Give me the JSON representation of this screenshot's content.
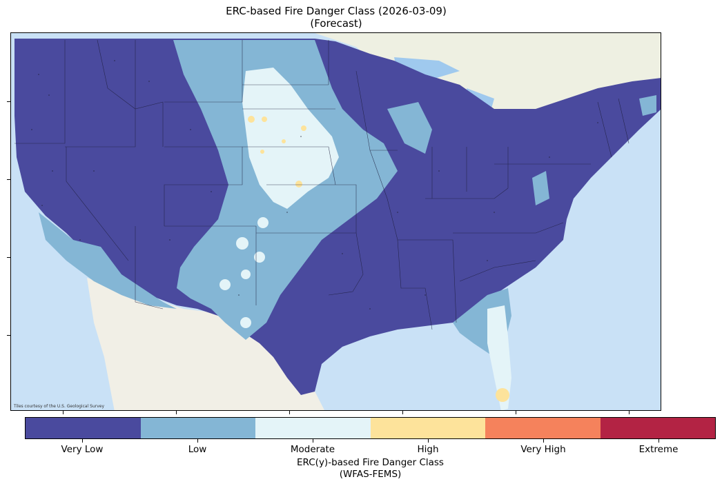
{
  "title": {
    "line1": "ERC-based Fire Danger Class (2026-03-09)",
    "line2": "(Forecast)"
  },
  "map": {
    "attribution": "Tiles courtesy of the U.S. Geological Survey"
  },
  "legend": {
    "title_line1": "ERC(y)-based Fire Danger Class",
    "title_line2": "(WFAS-FEMS)",
    "classes": [
      {
        "label": "Very Low",
        "color": "#4a4a9e"
      },
      {
        "label": "Low",
        "color": "#84b6d5"
      },
      {
        "label": "Moderate",
        "color": "#e4f4f8"
      },
      {
        "label": "High",
        "color": "#fde39b"
      },
      {
        "label": "Very High",
        "color": "#f5825c"
      },
      {
        "label": "Extreme",
        "color": "#b32344"
      }
    ]
  }
}
